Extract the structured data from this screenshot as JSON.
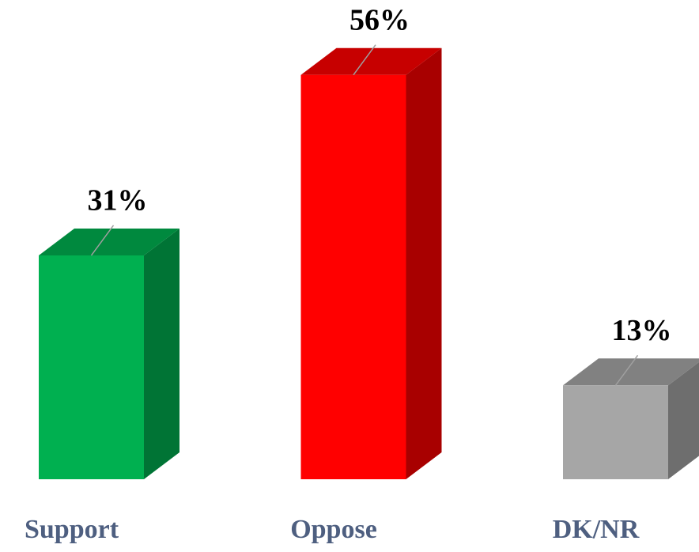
{
  "chart_data": {
    "type": "bar3d",
    "categories": [
      "Support",
      "Oppose",
      "DK/NR"
    ],
    "values": [
      31,
      56,
      13
    ],
    "value_labels": [
      "31%",
      "56%",
      "13%"
    ],
    "colors": [
      "#00b050",
      "#ff0000",
      "#a6a6a6"
    ]
  }
}
